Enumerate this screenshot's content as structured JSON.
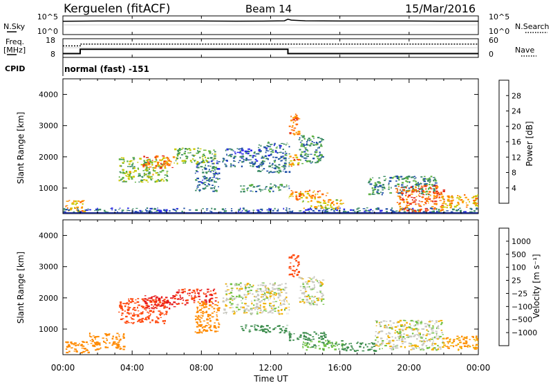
{
  "header": {
    "station": "Kerguelen (fitACF)",
    "beam": "Beam 14",
    "date": "15/Mar/2016"
  },
  "noise_panel": {
    "left_label": "N.Sky",
    "right_label": "N.Search",
    "left_ticks": [
      "10^5",
      "10^0"
    ],
    "right_ticks": [
      "10^5",
      "10^0"
    ]
  },
  "freq_panel": {
    "left_label_line1": "Freq.",
    "left_label_line2": "[MHz]",
    "right_label": "Nave",
    "left_ticks": [
      "18",
      "8"
    ],
    "right_ticks": [
      "60",
      "0"
    ]
  },
  "cpid": {
    "label": "CPID",
    "value": "normal (fast) -151"
  },
  "power_panel": {
    "ylabel": "Slant Range [km]",
    "yticks": [
      "1000",
      "2000",
      "3000",
      "4000"
    ],
    "colorbar_label": "Power [dB]",
    "colorbar_ticks": [
      "4",
      "8",
      "12",
      "16",
      "20",
      "24",
      "28"
    ]
  },
  "velocity_panel": {
    "ylabel": "Slant Range [km]",
    "yticks": [
      "1000",
      "2000",
      "3000",
      "4000"
    ],
    "colorbar_label": "Velocity [m s⁻¹]",
    "colorbar_ticks": [
      "1000",
      "500",
      "100",
      "25",
      "−25",
      "−100",
      "−500",
      "−1000"
    ]
  },
  "x_axis": {
    "title": "Time UT",
    "ticks": [
      "00:00",
      "04:00",
      "08:00",
      "12:00",
      "16:00",
      "20:00",
      "00:00"
    ]
  },
  "colors": {
    "power_scale": [
      "#2a28e6",
      "#1f4fa6",
      "#3d8c66",
      "#5cb040",
      "#c8c800",
      "#ff9900",
      "#ff6a00",
      "#e62a1a"
    ],
    "velocity_scale": [
      "#2a3ecc",
      "#2a6a8c",
      "#3c8c4c",
      "#6ec040",
      "#c8c8c0",
      "#f0b000",
      "#ff8a00",
      "#ff4a10",
      "#e61a1a"
    ]
  },
  "chart_data": [
    {
      "type": "line",
      "name": "noise",
      "x_unit": "hours UT",
      "y_scale": "log",
      "ylim": [
        1,
        100000
      ],
      "series": [
        {
          "name": "N.Sky",
          "x": [
            0,
            2,
            4,
            6,
            8,
            10,
            12,
            12.8,
            13,
            13.2,
            14,
            16,
            18,
            20,
            22,
            24
          ],
          "y": [
            8000,
            10000,
            10000,
            10000,
            10000,
            9000,
            10000,
            12000,
            40000,
            20000,
            12000,
            10000,
            10000,
            10000,
            9000,
            9000
          ]
        }
      ]
    },
    {
      "type": "line",
      "name": "frequency_and_nave",
      "x_unit": "hours UT",
      "ylim_freq": [
        8,
        18
      ],
      "ylim_nave": [
        0,
        60
      ],
      "series": [
        {
          "name": "Freq.",
          "x": [
            0,
            1,
            1,
            13,
            13,
            24
          ],
          "y": [
            9.5,
            9.5,
            12.2,
            12.2,
            9.5,
            9.5
          ]
        },
        {
          "name": "Nave",
          "x": [
            0,
            1,
            1,
            24
          ],
          "y": [
            38,
            38,
            45,
            45
          ]
        }
      ]
    },
    {
      "type": "heatmap",
      "name": "power",
      "x_unit": "hours UT",
      "xlim": [
        0,
        24
      ],
      "y_unit": "km",
      "ylim": [
        180,
        4500
      ],
      "z_unit": "dB",
      "zlim": [
        0,
        30
      ],
      "features": [
        {
          "t0": 0.0,
          "t1": 1.2,
          "r0": 250,
          "r1": 620,
          "db": 20
        },
        {
          "t0": 0.0,
          "t1": 24,
          "r0": 230,
          "r1": 380,
          "db": 6
        },
        {
          "t0": 3.2,
          "t1": 6.0,
          "r0": 1200,
          "r1": 2000,
          "db": 14
        },
        {
          "t0": 4.6,
          "t1": 6.4,
          "r0": 1650,
          "r1": 2050,
          "db": 24
        },
        {
          "t0": 6.4,
          "t1": 8.8,
          "r0": 1800,
          "r1": 2300,
          "db": 13
        },
        {
          "t0": 7.6,
          "t1": 9.0,
          "r0": 900,
          "r1": 1900,
          "db": 7
        },
        {
          "t0": 9.2,
          "t1": 11.2,
          "r0": 1700,
          "r1": 2300,
          "db": 6
        },
        {
          "t0": 11.2,
          "t1": 13.0,
          "r0": 1500,
          "r1": 2500,
          "db": 8
        },
        {
          "t0": 13.0,
          "t1": 13.6,
          "r0": 2700,
          "r1": 3400,
          "db": 24
        },
        {
          "t0": 13.0,
          "t1": 13.6,
          "r0": 1700,
          "r1": 2100,
          "db": 22
        },
        {
          "t0": 13.6,
          "t1": 15.0,
          "r0": 1800,
          "r1": 2700,
          "db": 10
        },
        {
          "t0": 10.2,
          "t1": 13.0,
          "r0": 900,
          "r1": 1150,
          "db": 9
        },
        {
          "t0": 13.0,
          "t1": 15.3,
          "r0": 650,
          "r1": 950,
          "db": 22
        },
        {
          "t0": 13.8,
          "t1": 16.2,
          "r0": 350,
          "r1": 650,
          "db": 18
        },
        {
          "t0": 17.6,
          "t1": 21.5,
          "r0": 800,
          "r1": 1400,
          "db": 10
        },
        {
          "t0": 19.2,
          "t1": 22.0,
          "r0": 250,
          "r1": 1100,
          "db": 25
        },
        {
          "t0": 21.8,
          "t1": 24,
          "r0": 400,
          "r1": 800,
          "db": 20
        }
      ]
    },
    {
      "type": "heatmap",
      "name": "velocity",
      "x_unit": "hours UT",
      "xlim": [
        0,
        24
      ],
      "y_unit": "km",
      "ylim": [
        180,
        4500
      ],
      "z_unit": "m s^-1",
      "zlim": [
        -1000,
        1000
      ],
      "features": [
        {
          "t0": 0.0,
          "t1": 1.5,
          "r0": 250,
          "r1": 620,
          "v": -200
        },
        {
          "t0": 1.5,
          "t1": 3.5,
          "r0": 350,
          "r1": 900,
          "v": -150
        },
        {
          "t0": 3.2,
          "t1": 6.0,
          "r0": 1200,
          "r1": 2000,
          "v": -400
        },
        {
          "t0": 4.6,
          "t1": 6.4,
          "r0": 1650,
          "r1": 2100,
          "v": -800
        },
        {
          "t0": 6.4,
          "t1": 8.8,
          "r0": 1800,
          "r1": 2300,
          "v": -600
        },
        {
          "t0": 7.6,
          "t1": 9.0,
          "r0": 900,
          "r1": 1900,
          "v": -120
        },
        {
          "t0": 9.2,
          "t1": 13.0,
          "r0": 1500,
          "r1": 2500,
          "v": 0
        },
        {
          "t0": 13.0,
          "t1": 13.6,
          "r0": 2700,
          "r1": 3400,
          "v": -400
        },
        {
          "t0": 13.6,
          "t1": 15.0,
          "r0": 1800,
          "r1": 2700,
          "v": 0
        },
        {
          "t0": 10.2,
          "t1": 13.0,
          "r0": 900,
          "r1": 1150,
          "v": 90
        },
        {
          "t0": 13.0,
          "t1": 15.3,
          "r0": 650,
          "r1": 950,
          "v": 90
        },
        {
          "t0": 13.8,
          "t1": 16.2,
          "r0": 350,
          "r1": 650,
          "v": 50
        },
        {
          "t0": 16.0,
          "t1": 18.0,
          "r0": 300,
          "r1": 600,
          "v": 200
        },
        {
          "t0": 18.0,
          "t1": 22.0,
          "r0": 350,
          "r1": 1300,
          "v": 0
        },
        {
          "t0": 21.8,
          "t1": 24,
          "r0": 350,
          "r1": 800,
          "v": -60
        }
      ]
    }
  ]
}
